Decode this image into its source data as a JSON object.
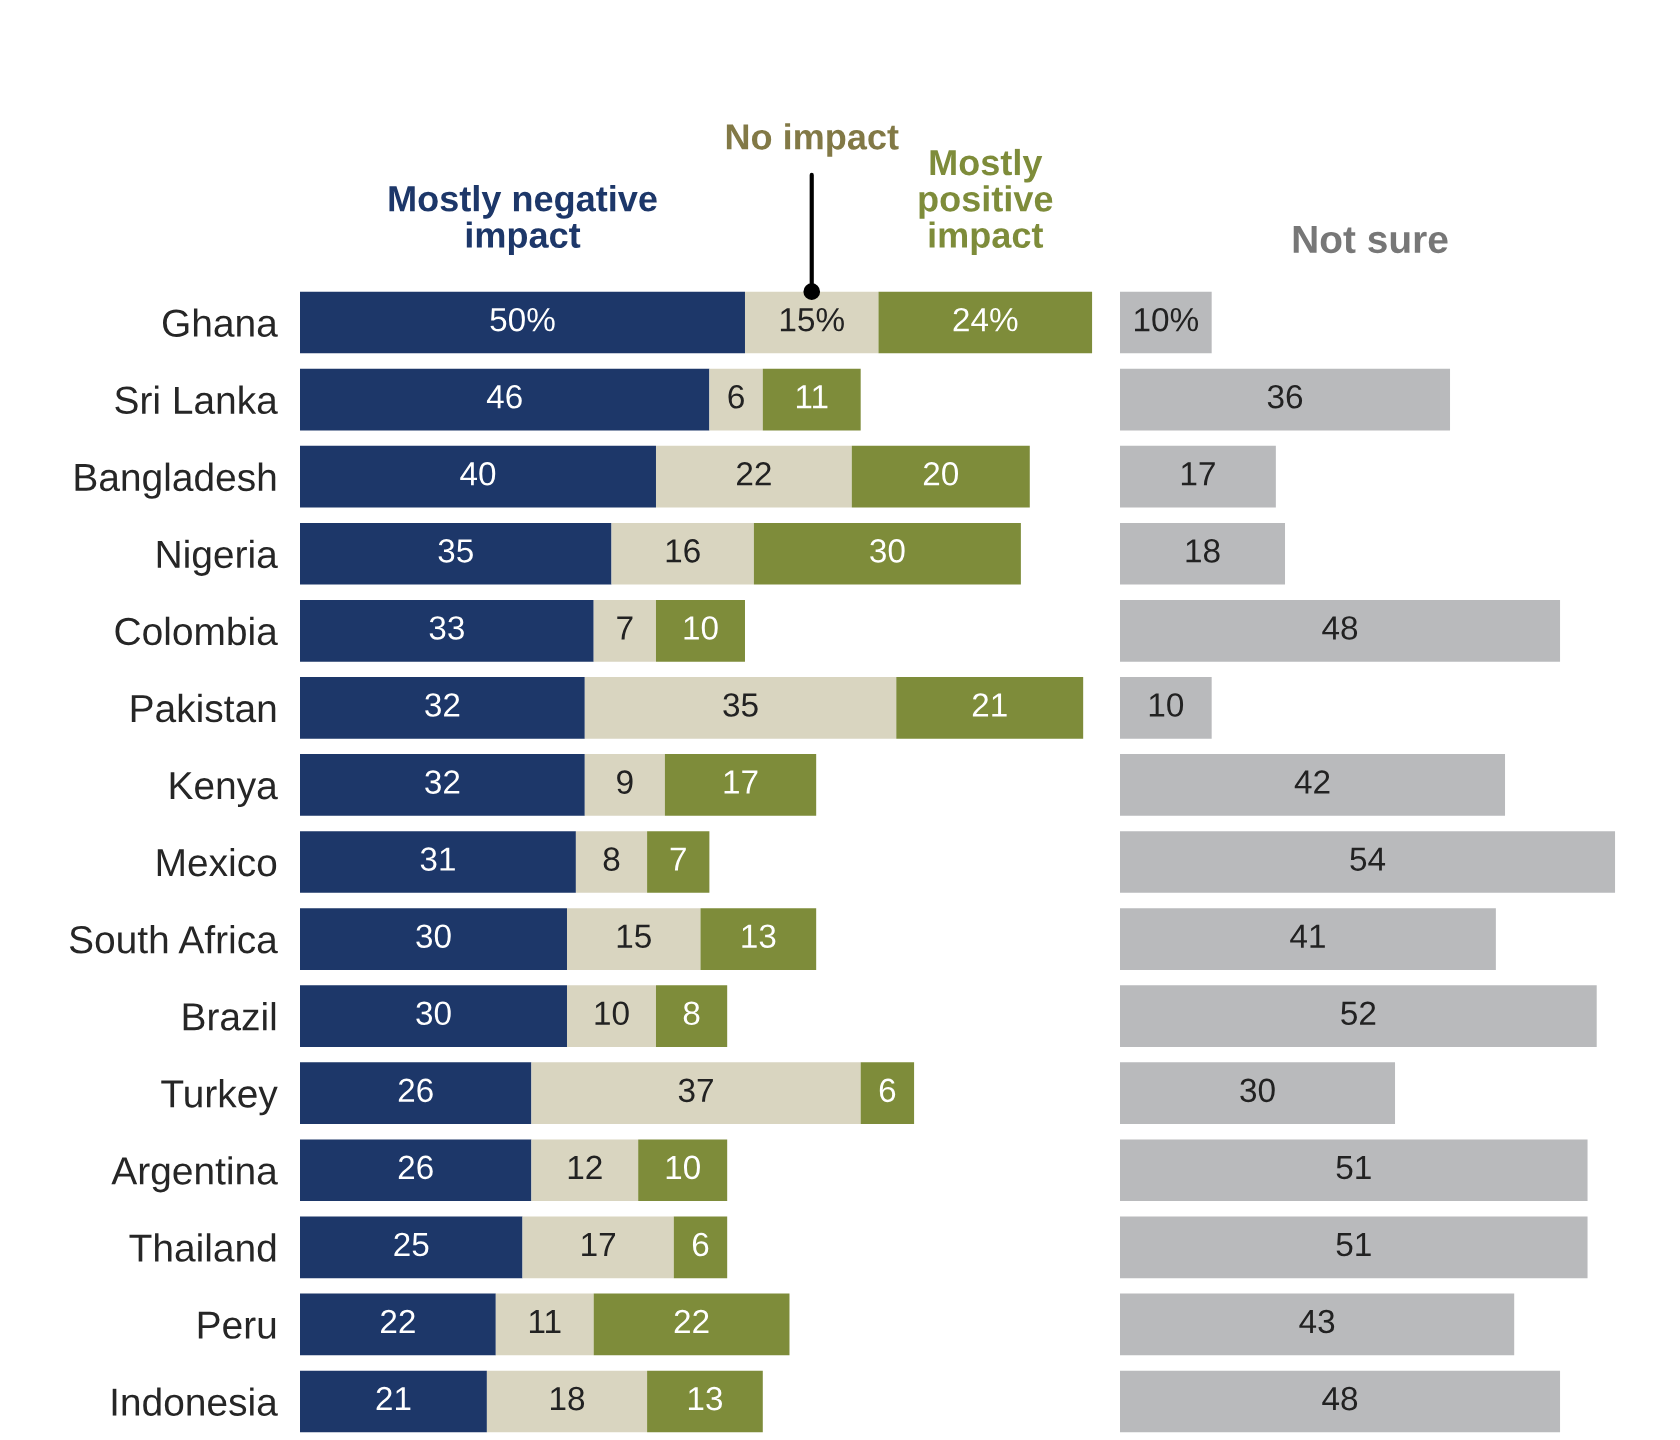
{
  "chart_data": [
    {
      "type": "bar",
      "orientation": "horizontal",
      "stacked": true,
      "legend": false,
      "grid": false,
      "tick_labels": "y",
      "categories": [
        "Ghana",
        "Sri Lanka",
        "Bangladesh",
        "Nigeria",
        "Colombia",
        "Pakistan",
        "Kenya",
        "Mexico",
        "South Africa",
        "Brazil",
        "Turkey",
        "Argentina",
        "Thailand",
        "Peru",
        "Indonesia"
      ],
      "series": [
        {
          "name": "Mostly negative impact",
          "color": "#1d3769",
          "values": [
            50,
            46,
            40,
            35,
            33,
            32,
            32,
            31,
            30,
            30,
            26,
            26,
            25,
            22,
            21
          ],
          "value_labels": [
            "50%",
            "46",
            "40",
            "35",
            "33",
            "32",
            "32",
            "31",
            "30",
            "30",
            "26",
            "26",
            "25",
            "22",
            "21"
          ]
        },
        {
          "name": "No impact",
          "color": "#d9d5c0",
          "values": [
            15,
            6,
            22,
            16,
            7,
            35,
            9,
            8,
            15,
            10,
            37,
            12,
            17,
            11,
            18
          ],
          "value_labels": [
            "15%",
            "6",
            "22",
            "16",
            "7",
            "35",
            "9",
            "8",
            "15",
            "10",
            "37",
            "12",
            "17",
            "11",
            "18"
          ]
        },
        {
          "name": "Mostly positive impact",
          "color": "#7e8c3a",
          "values": [
            24,
            11,
            20,
            30,
            10,
            21,
            17,
            7,
            13,
            8,
            6,
            10,
            6,
            22,
            13
          ],
          "value_labels": [
            "24%",
            "11",
            "20",
            "30",
            "10",
            "21",
            "17",
            "7",
            "13",
            "8",
            "6",
            "10",
            "6",
            "22",
            "13"
          ]
        }
      ]
    },
    {
      "type": "bar",
      "orientation": "horizontal",
      "legend": false,
      "grid": false,
      "tick_labels": false,
      "title": "Not sure",
      "categories": [
        null,
        null,
        null,
        null,
        null,
        null,
        null,
        null,
        null,
        null,
        null,
        null,
        null,
        null,
        null
      ],
      "series": [
        {
          "color": "#b9babc",
          "values": [
            10,
            36,
            17,
            18,
            48,
            10,
            42,
            54,
            41,
            52,
            30,
            51,
            51,
            43,
            48
          ],
          "value_labels": [
            "10%",
            "36",
            "17",
            "18",
            "48",
            "10",
            "42",
            "54",
            "41",
            "52",
            "30",
            "51",
            "51",
            "43",
            "48"
          ]
        }
      ]
    }
  ]
}
